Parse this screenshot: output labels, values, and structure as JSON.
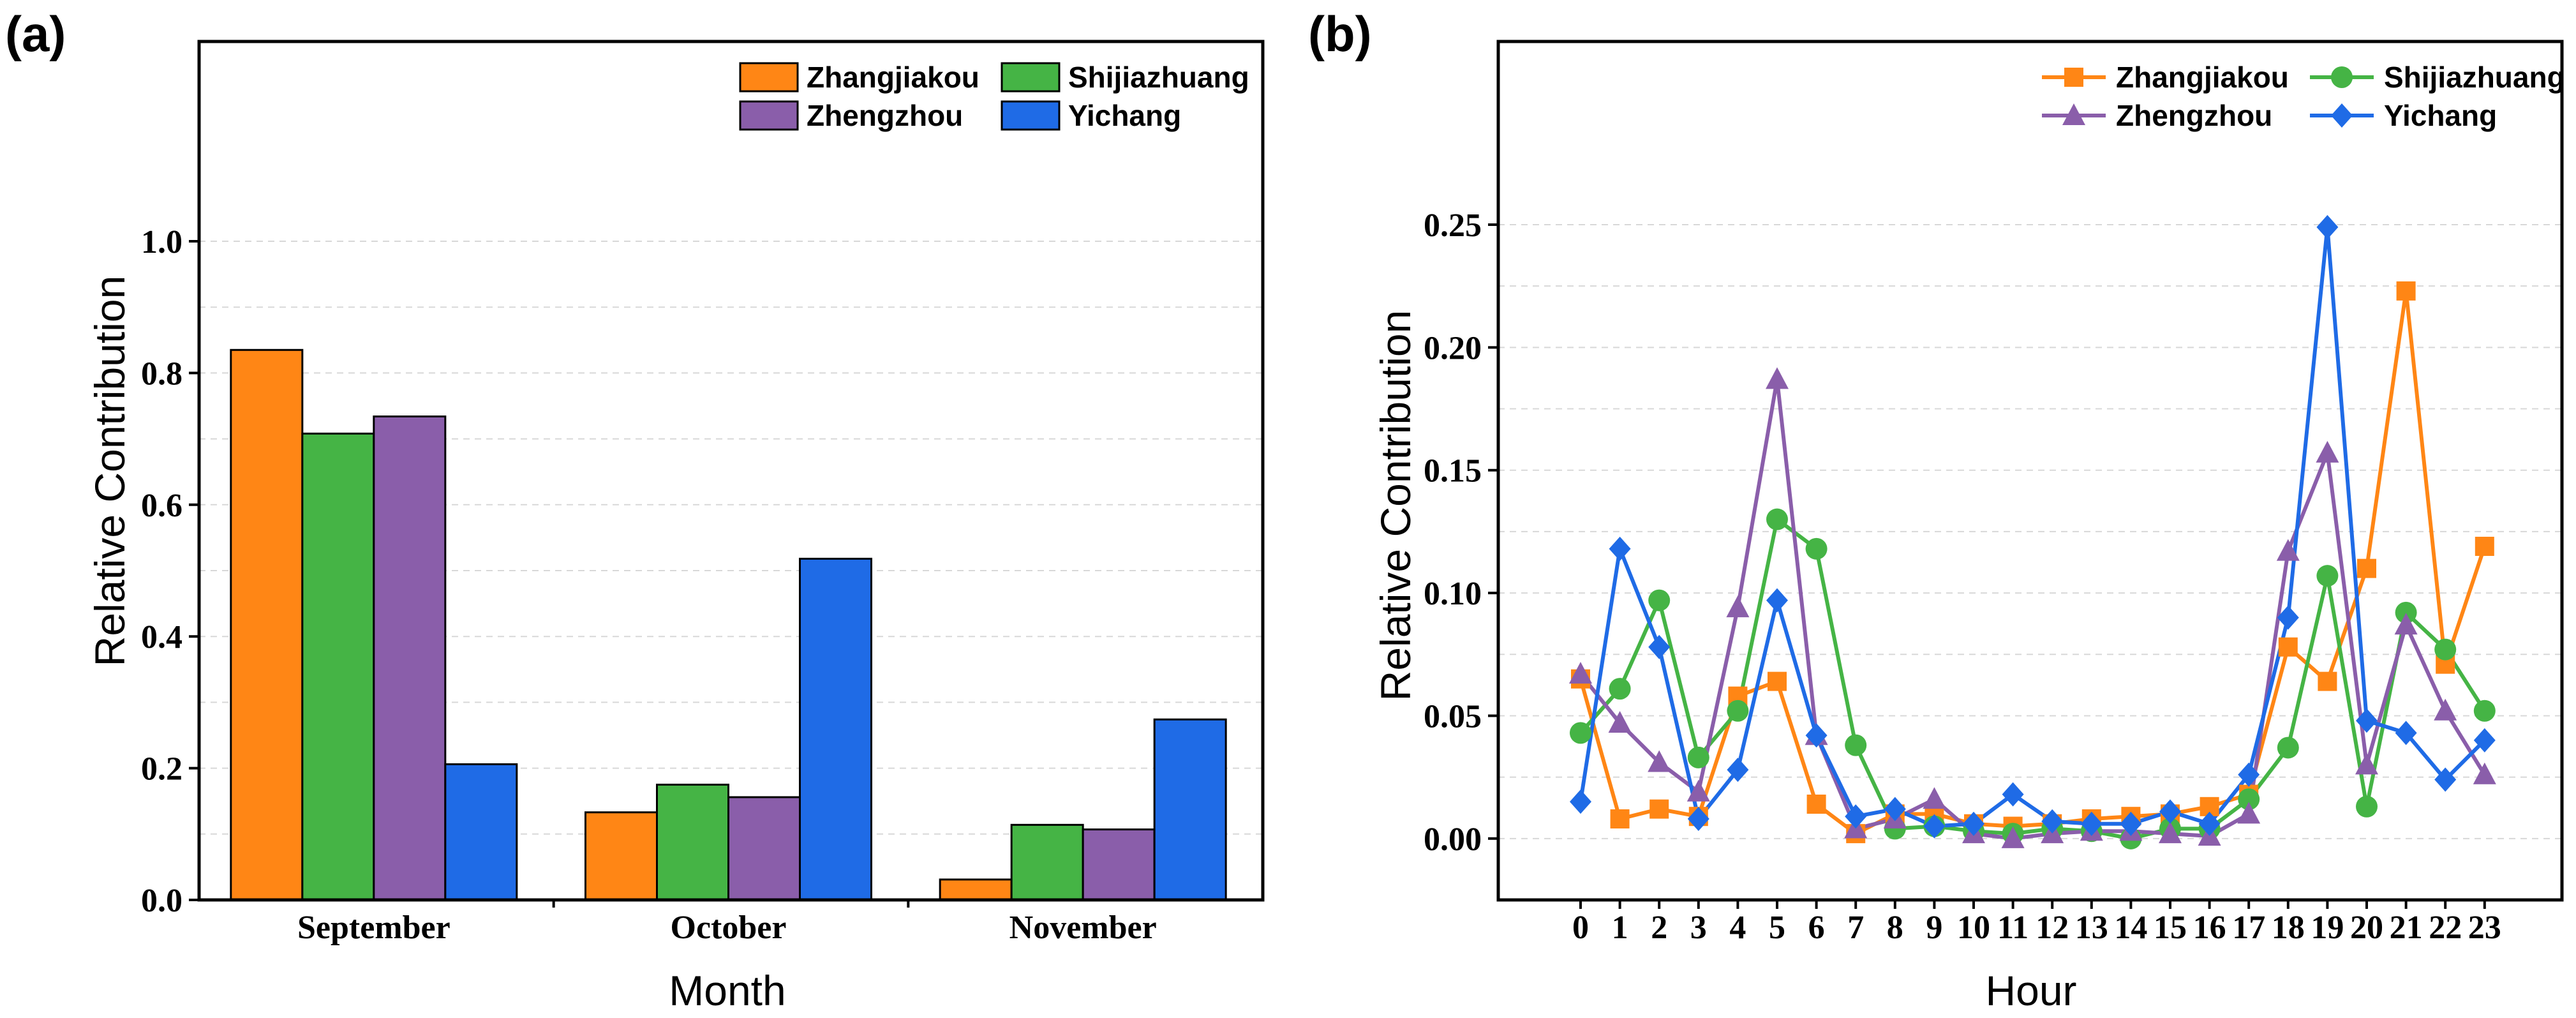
{
  "colors": {
    "Zhangjiakou": "#ff8615",
    "Shijiazhuang": "#45b445",
    "Zhengzhou": "#8a5eaa",
    "Yichang": "#1f6be6"
  },
  "chart_data": [
    {
      "panel_label": "(a)",
      "type": "bar",
      "xlabel": "Month",
      "ylabel": "Relative Contribution",
      "categories": [
        "September",
        "October",
        "November"
      ],
      "ylim": [
        0,
        1.0
      ],
      "yticks": [
        "0.0",
        "0.2",
        "0.4",
        "0.6",
        "0.8",
        "1.0"
      ],
      "grid": true,
      "legend_position": "top-right",
      "legend": [
        "Zhangjiakou",
        "Shijiazhuang",
        "Zhengzhou",
        "Yichang"
      ],
      "series": [
        {
          "name": "Zhangjiakou",
          "values": [
            0.835,
            0.133,
            0.031
          ]
        },
        {
          "name": "Shijiazhuang",
          "values": [
            0.708,
            0.175,
            0.114
          ]
        },
        {
          "name": "Zhengzhou",
          "values": [
            0.734,
            0.156,
            0.107
          ]
        },
        {
          "name": "Yichang",
          "values": [
            0.206,
            0.518,
            0.274
          ]
        }
      ]
    },
    {
      "panel_label": "(b)",
      "type": "line",
      "xlabel": "Hour",
      "ylabel": "Relative Contribution",
      "x": [
        "0",
        "1",
        "2",
        "3",
        "4",
        "5",
        "6",
        "7",
        "8",
        "9",
        "10",
        "11",
        "12",
        "13",
        "14",
        "15",
        "16",
        "17",
        "18",
        "19",
        "20",
        "21",
        "22",
        "23"
      ],
      "ylim": [
        -0.025,
        0.25
      ],
      "yticks": [
        "0.00",
        "0.05",
        "0.10",
        "0.15",
        "0.20",
        "0.25"
      ],
      "grid": true,
      "legend_position": "top-right",
      "legend": [
        "Zhangjiakou",
        "Shijiazhuang",
        "Zhengzhou",
        "Yichang"
      ],
      "series": [
        {
          "name": "Zhangjiakou",
          "marker": "square",
          "values": [
            0.065,
            0.008,
            0.012,
            0.009,
            0.058,
            0.064,
            0.014,
            0.002,
            0.01,
            0.01,
            0.006,
            0.005,
            0.006,
            0.008,
            0.009,
            0.01,
            0.013,
            0.018,
            0.078,
            0.064,
            0.11,
            0.223,
            0.071,
            0.119
          ]
        },
        {
          "name": "Shijiazhuang",
          "marker": "circle",
          "values": [
            0.043,
            0.061,
            0.097,
            0.033,
            0.052,
            0.13,
            0.118,
            0.038,
            0.004,
            0.005,
            0.003,
            0.002,
            0.004,
            0.003,
            0.0,
            0.004,
            0.004,
            0.016,
            0.037,
            0.107,
            0.013,
            0.092,
            0.077,
            0.052
          ]
        },
        {
          "name": "Zhengzhou",
          "marker": "triangle",
          "values": [
            0.067,
            0.047,
            0.031,
            0.019,
            0.094,
            0.187,
            0.042,
            0.004,
            0.008,
            0.016,
            0.002,
            0.0,
            0.002,
            0.003,
            0.003,
            0.002,
            0.001,
            0.01,
            0.117,
            0.157,
            0.03,
            0.087,
            0.052,
            0.026
          ]
        },
        {
          "name": "Yichang",
          "marker": "diamond",
          "values": [
            0.015,
            0.118,
            0.078,
            0.008,
            0.028,
            0.097,
            0.042,
            0.009,
            0.012,
            0.005,
            0.006,
            0.018,
            0.007,
            0.006,
            0.006,
            0.011,
            0.006,
            0.026,
            0.09,
            0.249,
            0.048,
            0.043,
            0.024,
            0.04
          ]
        }
      ]
    }
  ]
}
